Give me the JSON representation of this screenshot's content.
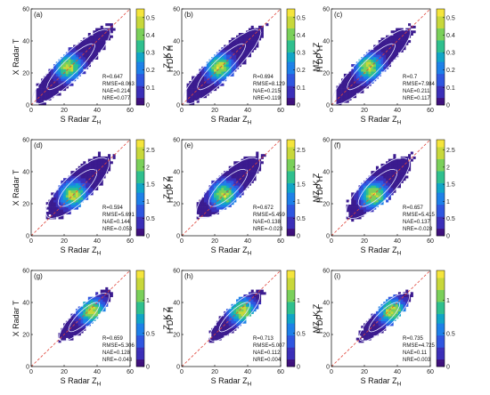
{
  "colors": {
    "colormap": [
      "#3e0f7c",
      "#3b2fb8",
      "#2f56e0",
      "#1d80e8",
      "#11a5c7",
      "#2fc08e",
      "#7ad05a",
      "#c8d83b",
      "#f5e53c"
    ],
    "background_bin": "#3b1b8f",
    "contour": "#e6e6ff",
    "one_to_one": "#e0453a"
  },
  "chart_data": [
    {
      "label": "(a)",
      "type": "heatmap",
      "xlabel": "S Radar Z",
      "xlabel_sub": "H",
      "ylabel": "X Radar T",
      "ylabel_sub": "",
      "xlim": [
        0,
        60
      ],
      "ylim": [
        0,
        60
      ],
      "xticks": [
        0,
        20,
        40,
        60
      ],
      "yticks": [
        0,
        20,
        40,
        60
      ],
      "one_to_one_line": true,
      "colorbar": {
        "range": [
          0,
          0.55
        ],
        "ticks": [
          0,
          0.1,
          0.2,
          0.3,
          0.4,
          0.5
        ]
      },
      "stats": [
        "R=0.647",
        "RMSE=8.063",
        "NAE=0.214",
        "NRE=0.077"
      ]
    },
    {
      "label": "(b)",
      "type": "heatmap",
      "xlabel": "S Radar Z",
      "xlabel_sub": "H",
      "ylabel": "Z -K  Z",
      "ylabel_sub": "H  DP  H",
      "xlim": [
        0,
        60
      ],
      "ylim": [
        0,
        60
      ],
      "xticks": [
        0,
        20,
        40,
        60
      ],
      "yticks": [
        0,
        20,
        40,
        60
      ],
      "one_to_one_line": true,
      "colorbar": {
        "range": [
          0,
          0.55
        ],
        "ticks": [
          0,
          0.1,
          0.2,
          0.3,
          0.4,
          0.5
        ]
      },
      "stats": [
        "R=0.694",
        "RMSE=8.129",
        "NAE=0.215",
        "NRE=0.119"
      ]
    },
    {
      "label": "(c)",
      "type": "heatmap",
      "xlabel": "S Radar Z",
      "xlabel_sub": "H",
      "ylabel": "MZ -K  Z",
      "ylabel_sub": "H  DP  H",
      "xlim": [
        0,
        60
      ],
      "ylim": [
        0,
        60
      ],
      "xticks": [
        0,
        20,
        40,
        60
      ],
      "yticks": [
        0,
        20,
        40,
        60
      ],
      "one_to_one_line": true,
      "colorbar": {
        "range": [
          0,
          0.55
        ],
        "ticks": [
          0,
          0.1,
          0.2,
          0.3,
          0.4,
          0.5
        ]
      },
      "stats": [
        "R=0.7",
        "RMSE=7.984",
        "NAE=0.211",
        "NRE=0.117"
      ]
    },
    {
      "label": "(d)",
      "type": "heatmap",
      "xlabel": "S Radar Z",
      "xlabel_sub": "H",
      "ylabel": "X Radar T",
      "ylabel_sub": "",
      "xlim": [
        0,
        60
      ],
      "ylim": [
        0,
        60
      ],
      "xticks": [
        0,
        20,
        40,
        60
      ],
      "yticks": [
        0,
        20,
        40,
        60
      ],
      "one_to_one_line": true,
      "colorbar": {
        "range": [
          0,
          2.8
        ],
        "ticks": [
          0,
          0.5,
          1,
          1.5,
          2,
          2.5
        ]
      },
      "stats": [
        "R=0.594",
        "RMSE=5.691",
        "NAE=0.144",
        "NRE=-0.053"
      ]
    },
    {
      "label": "(e)",
      "type": "heatmap",
      "xlabel": "S Radar Z",
      "xlabel_sub": "H",
      "ylabel": "Z -K  Z",
      "ylabel_sub": "H  DP  H",
      "xlim": [
        0,
        60
      ],
      "ylim": [
        0,
        60
      ],
      "xticks": [
        0,
        20,
        40,
        60
      ],
      "yticks": [
        0,
        20,
        40,
        60
      ],
      "one_to_one_line": true,
      "colorbar": {
        "range": [
          0,
          2.8
        ],
        "ticks": [
          0,
          0.5,
          1,
          1.5,
          2,
          2.5
        ]
      },
      "stats": [
        "R=0.672",
        "RMSE=5.459",
        "NAE=0.138",
        "NRE=-0.023"
      ]
    },
    {
      "label": "(f)",
      "type": "heatmap",
      "xlabel": "S Radar Z",
      "xlabel_sub": "H",
      "ylabel": "MZ -K  Z",
      "ylabel_sub": "H  DP  H",
      "xlim": [
        0,
        60
      ],
      "ylim": [
        0,
        60
      ],
      "xticks": [
        0,
        20,
        40,
        60
      ],
      "yticks": [
        0,
        20,
        40,
        60
      ],
      "one_to_one_line": true,
      "colorbar": {
        "range": [
          0,
          2.8
        ],
        "ticks": [
          0,
          0.5,
          1,
          1.5,
          2,
          2.5
        ]
      },
      "stats": [
        "R=0.657",
        "RMSE=5.415",
        "NAE=0.137",
        "NRE=-0.028"
      ]
    },
    {
      "label": "(g)",
      "type": "heatmap",
      "xlabel": "S Radar Z",
      "xlabel_sub": "H",
      "ylabel": "X Radar T",
      "ylabel_sub": "",
      "xlim": [
        0,
        60
      ],
      "ylim": [
        0,
        60
      ],
      "xticks": [
        0,
        20,
        40,
        60
      ],
      "yticks": [
        0,
        20,
        40,
        60
      ],
      "one_to_one_line": true,
      "colorbar": {
        "range": [
          0,
          1.45
        ],
        "ticks": [
          0,
          0.5,
          1
        ]
      },
      "stats": [
        "R=0.659",
        "RMSE=5.306",
        "NAE=0.128",
        "NRE=-0.043"
      ]
    },
    {
      "label": "(h)",
      "type": "heatmap",
      "xlabel": "S Radar Z",
      "xlabel_sub": "H",
      "ylabel": "Z -K  Z",
      "ylabel_sub": "H  DP  H",
      "xlim": [
        0,
        60
      ],
      "ylim": [
        0,
        60
      ],
      "xticks": [
        0,
        20,
        40,
        60
      ],
      "yticks": [
        0,
        20,
        40,
        60
      ],
      "one_to_one_line": true,
      "colorbar": {
        "range": [
          0,
          1.45
        ],
        "ticks": [
          0,
          0.5,
          1
        ]
      },
      "stats": [
        "R=0.713",
        "RMSE=5.007",
        "NAE=0.112",
        "NRE=0.004"
      ]
    },
    {
      "label": "(i)",
      "type": "heatmap",
      "xlabel": "S Radar Z",
      "xlabel_sub": "H",
      "ylabel": "MZ -K  Z",
      "ylabel_sub": "H  DP  H",
      "xlim": [
        0,
        60
      ],
      "ylim": [
        0,
        60
      ],
      "xticks": [
        0,
        20,
        40,
        60
      ],
      "yticks": [
        0,
        20,
        40,
        60
      ],
      "one_to_one_line": true,
      "colorbar": {
        "range": [
          0,
          1.45
        ],
        "ticks": [
          0,
          0.5,
          1
        ]
      },
      "stats": [
        "R=0.735",
        "RMSE=4.725",
        "NAE=0.11",
        "NRE=0.003"
      ]
    }
  ]
}
